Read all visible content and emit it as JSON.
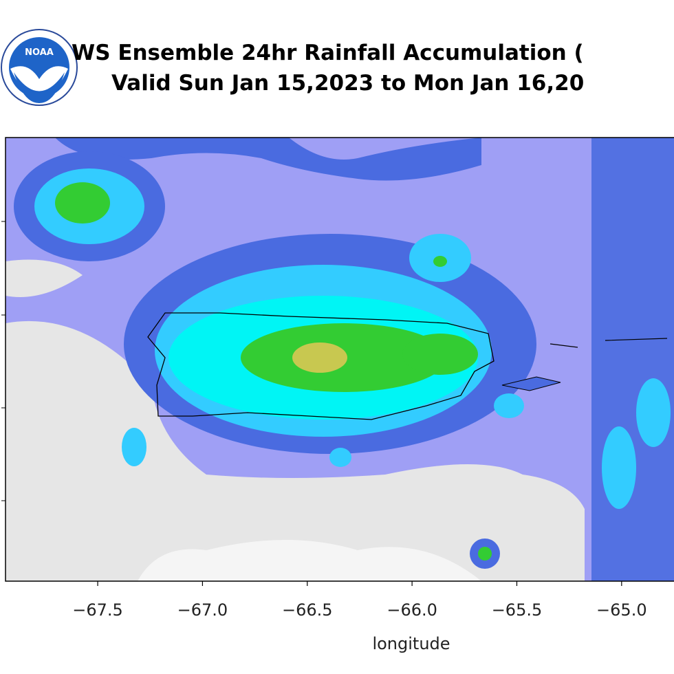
{
  "map": {
    "title_lines": [
      "WS Ensemble 24hr Rainfall Accumulation (",
      "Valid Sun Jan 15,2023 to Mon Jan 16,20"
    ],
    "logo_text": "NOAA",
    "xlim": [
      -67.94,
      -64.75
    ],
    "xticks": [
      {
        "value": -67.5,
        "label": "−67.5"
      },
      {
        "value": -67.0,
        "label": "−67.0"
      },
      {
        "value": -66.5,
        "label": "−66.5"
      },
      {
        "value": -66.0,
        "label": "−66.0"
      },
      {
        "value": -65.5,
        "label": "−65.5"
      },
      {
        "value": -65.0,
        "label": "−65.0"
      }
    ],
    "xlabel": "longitude"
  }
}
